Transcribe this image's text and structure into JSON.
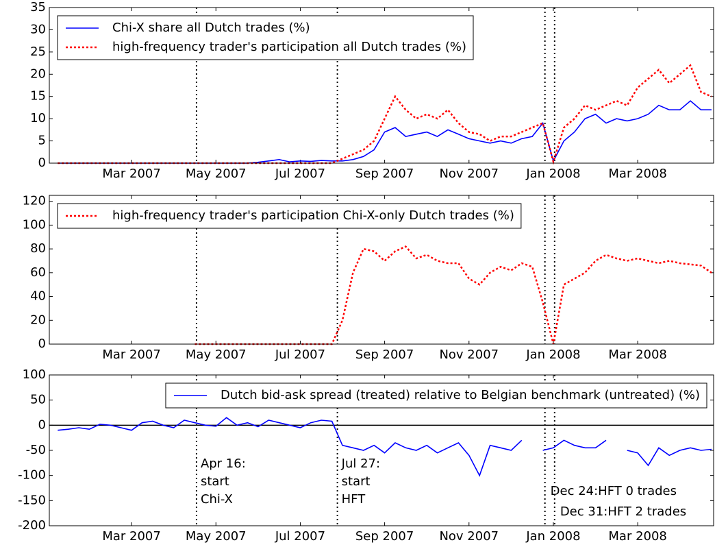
{
  "chart_data": [
    {
      "type": "line",
      "xlim": [
        0.05,
        15.8
      ],
      "ylim": [
        0,
        35
      ],
      "yticks": [
        0,
        5,
        10,
        15,
        20,
        25,
        30,
        35
      ],
      "xticks": [
        {
          "value": 2,
          "label": "Mar 2007"
        },
        {
          "value": 4,
          "label": "May 2007"
        },
        {
          "value": 6,
          "label": "Jul 2007"
        },
        {
          "value": 8,
          "label": "Sep 2007"
        },
        {
          "value": 10,
          "label": "Nov 2007"
        },
        {
          "value": 12,
          "label": "Jan 2008"
        },
        {
          "value": 14,
          "label": "Mar 2008"
        }
      ],
      "vlines": [
        3.54,
        6.88,
        11.8,
        12.03
      ],
      "legend": "upper left",
      "x": [
        0.25,
        0.5,
        0.75,
        1,
        1.25,
        1.5,
        1.75,
        2,
        2.25,
        2.5,
        2.75,
        3,
        3.25,
        3.5,
        3.75,
        4,
        4.25,
        4.5,
        4.75,
        5,
        5.25,
        5.5,
        5.75,
        6,
        6.25,
        6.5,
        6.75,
        7,
        7.25,
        7.5,
        7.75,
        8,
        8.25,
        8.5,
        8.75,
        9,
        9.25,
        9.5,
        9.75,
        10,
        10.25,
        10.5,
        10.75,
        11,
        11.25,
        11.5,
        11.75,
        12,
        12.25,
        12.5,
        12.75,
        13,
        13.25,
        13.5,
        13.75,
        14,
        14.25,
        14.5,
        14.75,
        15,
        15.25,
        15.5,
        15.75
      ],
      "series": [
        {
          "name": "Chi-X share all Dutch trades (%)",
          "color": "#0000ff",
          "style": "solid",
          "values": [
            0,
            0,
            0,
            0,
            0,
            0,
            0,
            0,
            0,
            0,
            0,
            0,
            0,
            0,
            0,
            0,
            0,
            0,
            0,
            0.2,
            0.5,
            0.8,
            0.3,
            0.5,
            0.4,
            0.6,
            0.5,
            0.5,
            0.8,
            1.5,
            3,
            7,
            8,
            6,
            6.5,
            7,
            6,
            7.5,
            6.5,
            5.5,
            5,
            4.5,
            5,
            4.5,
            5.5,
            6,
            9,
            0.5,
            5,
            7,
            10,
            11,
            9,
            10,
            9.5,
            10,
            11,
            13,
            12,
            12,
            14,
            12,
            12
          ]
        },
        {
          "name": "high-frequency trader's participation all Dutch trades (%)",
          "color": "#ff0000",
          "style": "dotted",
          "values": [
            0,
            0,
            0,
            0,
            0,
            0,
            0,
            0,
            0,
            0,
            0,
            0,
            0,
            0,
            0,
            0,
            0,
            0,
            0,
            0,
            0,
            0,
            0,
            0,
            0,
            0,
            0,
            1,
            2,
            3,
            5,
            10,
            15,
            12,
            10,
            11,
            10,
            12,
            9,
            7,
            6.5,
            5,
            6,
            6,
            7,
            8,
            9,
            0.3,
            8,
            10,
            13,
            12,
            13,
            14,
            13,
            17,
            19,
            21,
            18,
            20,
            22,
            16,
            15
          ]
        }
      ]
    },
    {
      "type": "line",
      "xlim": [
        0.05,
        15.8
      ],
      "ylim": [
        0,
        125
      ],
      "yticks": [
        0,
        20,
        40,
        60,
        80,
        100,
        120
      ],
      "xticks": [
        {
          "value": 2,
          "label": "Mar 2007"
        },
        {
          "value": 4,
          "label": "May 2007"
        },
        {
          "value": 6,
          "label": "Jul 2007"
        },
        {
          "value": 8,
          "label": "Sep 2007"
        },
        {
          "value": 10,
          "label": "Nov 2007"
        },
        {
          "value": 12,
          "label": "Jan 2008"
        },
        {
          "value": 14,
          "label": "Mar 2008"
        }
      ],
      "vlines": [
        3.54,
        6.88,
        11.8,
        12.03
      ],
      "legend": "upper left",
      "x": [
        0.25,
        0.5,
        0.75,
        1,
        1.25,
        1.5,
        1.75,
        2,
        2.25,
        2.5,
        2.75,
        3,
        3.25,
        3.5,
        3.75,
        4,
        4.25,
        4.5,
        4.75,
        5,
        5.25,
        5.5,
        5.75,
        6,
        6.25,
        6.5,
        6.75,
        7,
        7.25,
        7.5,
        7.75,
        8,
        8.25,
        8.5,
        8.75,
        9,
        9.25,
        9.5,
        9.75,
        10,
        10.25,
        10.5,
        10.75,
        11,
        11.25,
        11.5,
        11.75,
        12,
        12.25,
        12.5,
        12.75,
        13,
        13.25,
        13.5,
        13.75,
        14,
        14.25,
        14.5,
        14.75,
        15,
        15.25,
        15.5,
        15.75
      ],
      "series": [
        {
          "name": "high-frequency trader's participation Chi-X-only Dutch trades (%)",
          "color": "#ff0000",
          "style": "dotted",
          "values": [
            null,
            null,
            null,
            null,
            null,
            null,
            null,
            null,
            null,
            null,
            null,
            null,
            null,
            0,
            0,
            0,
            0,
            0,
            0,
            0,
            0,
            0,
            0,
            0,
            0,
            0,
            0,
            20,
            60,
            80,
            78,
            70,
            78,
            82,
            72,
            75,
            70,
            68,
            68,
            55,
            50,
            60,
            65,
            62,
            68,
            65,
            35,
            0,
            50,
            55,
            60,
            70,
            75,
            72,
            70,
            72,
            70,
            68,
            70,
            68,
            67,
            66,
            60
          ]
        }
      ]
    },
    {
      "type": "line",
      "xlim": [
        0.05,
        15.8
      ],
      "ylim": [
        -200,
        100
      ],
      "yticks": [
        -200,
        -150,
        -100,
        -50,
        0,
        50,
        100
      ],
      "xticks": [
        {
          "value": 2,
          "label": "Mar 2007"
        },
        {
          "value": 4,
          "label": "May 2007"
        },
        {
          "value": 6,
          "label": "Jul 2007"
        },
        {
          "value": 8,
          "label": "Sep 2007"
        },
        {
          "value": 10,
          "label": "Nov 2007"
        },
        {
          "value": 12,
          "label": "Jan 2008"
        },
        {
          "value": 14,
          "label": "Mar 2008"
        }
      ],
      "vlines": [
        3.54,
        6.88,
        11.8,
        12.03
      ],
      "hline": 0,
      "legend": "upper right",
      "annotations": [
        [
          "Apr 16:",
          "start",
          "Chi-X"
        ],
        [
          "Jul 27:",
          "start",
          "HFT"
        ],
        [
          "Dec 24:HFT 0 trades"
        ],
        [
          "Dec 31:HFT 2 trades"
        ]
      ],
      "x": [
        0.25,
        0.5,
        0.75,
        1,
        1.25,
        1.5,
        1.75,
        2,
        2.25,
        2.5,
        2.75,
        3,
        3.25,
        3.5,
        3.75,
        4,
        4.25,
        4.5,
        4.75,
        5,
        5.25,
        5.5,
        5.75,
        6,
        6.25,
        6.5,
        6.75,
        7,
        7.25,
        7.5,
        7.75,
        8,
        8.25,
        8.5,
        8.75,
        9,
        9.25,
        9.5,
        9.75,
        10,
        10.25,
        10.5,
        10.75,
        11,
        11.25,
        11.5,
        11.75,
        12,
        12.25,
        12.5,
        12.75,
        13,
        13.25,
        13.5,
        13.75,
        14,
        14.25,
        14.5,
        14.75,
        15,
        15.25,
        15.5,
        15.75
      ],
      "series": [
        {
          "name": "Dutch bid-ask spread (treated) relative to Belgian benchmark (untreated) (%)",
          "color": "#0000ff",
          "style": "solid",
          "values": [
            -10,
            -8,
            -5,
            -8,
            2,
            0,
            -5,
            -10,
            5,
            8,
            0,
            -5,
            10,
            5,
            0,
            -2,
            15,
            0,
            5,
            -3,
            10,
            5,
            0,
            -5,
            5,
            10,
            8,
            -40,
            -45,
            -50,
            -40,
            -55,
            -35,
            -45,
            -50,
            -40,
            -55,
            -45,
            -35,
            -60,
            -100,
            -40,
            -45,
            -50,
            -30,
            null,
            -50,
            -45,
            -30,
            -40,
            -45,
            -45,
            -30,
            null,
            -50,
            -55,
            -80,
            -45,
            -60,
            -50,
            -45,
            -50,
            -48
          ]
        }
      ]
    }
  ]
}
